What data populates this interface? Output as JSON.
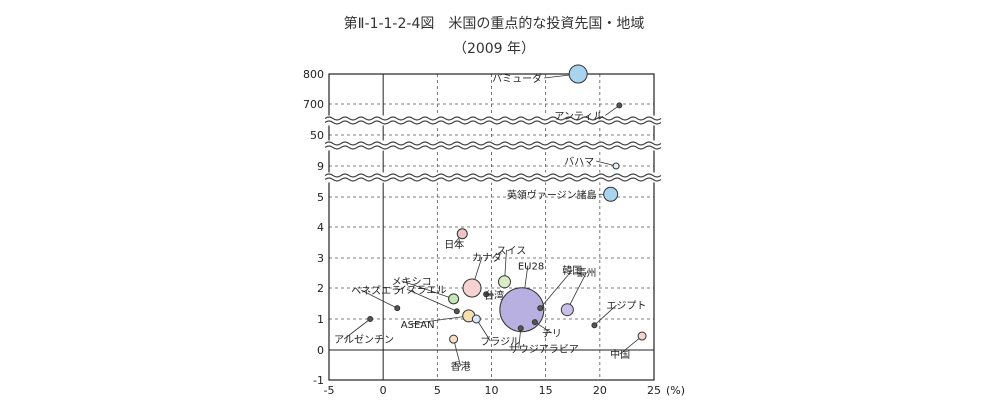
{
  "chart_data": {
    "type": "scatter",
    "title": "第Ⅱ-1-1-2-4図　米国の重点的な投資先国・地域",
    "subtitle": "（2009 年）",
    "x_unit": "(%)",
    "xlim": [
      -5,
      25
    ],
    "x_ticks": [
      "-5",
      "0",
      "5",
      "10",
      "15",
      "20",
      "25"
    ],
    "y_ticks": [
      "800",
      "700",
      "50",
      "9",
      "5",
      "4",
      "3",
      "2",
      "1",
      "0",
      "-1"
    ],
    "y_break_between": [
      [
        "5",
        "9"
      ],
      [
        "9",
        "50"
      ],
      [
        "50",
        "700"
      ]
    ],
    "points": [
      {
        "label": "バミューダ",
        "x": 18.0,
        "y": 800,
        "size": 9,
        "color": "#a8d4f0"
      },
      {
        "label": "アンティル",
        "x": 21.8,
        "y": 670,
        "size": 2.5,
        "color": "#555555"
      },
      {
        "label": "バハマ",
        "x": 21.5,
        "y": 9.0,
        "size": 3,
        "color": "#e6f2fa"
      },
      {
        "label": "英領ヴァージン諸島",
        "x": 21.0,
        "y": 5.35,
        "size": 7,
        "color": "#a8d4f0"
      },
      {
        "label": "日本",
        "x": 7.3,
        "y": 3.75,
        "size": 5,
        "color": "#f0c4c4"
      },
      {
        "label": "スイス",
        "x": 11.2,
        "y": 2.2,
        "size": 6,
        "color": "#d9ecc6"
      },
      {
        "label": "カナダ",
        "x": 8.2,
        "y": 2.0,
        "size": 9,
        "color": "#f6d3d0"
      },
      {
        "label": "メキシコ",
        "x": 6.5,
        "y": 1.65,
        "size": 5,
        "color": "#c6e6b6"
      },
      {
        "label": "台湾",
        "x": 9.5,
        "y": 1.8,
        "size": 2.5,
        "color": "#555555"
      },
      {
        "label": "ベネズエラ",
        "x": 1.3,
        "y": 1.35,
        "size": 2.5,
        "color": "#555555"
      },
      {
        "label": "イスラエル",
        "x": 6.8,
        "y": 1.25,
        "size": 2.5,
        "color": "#555555"
      },
      {
        "label": "EU28",
        "x": 12.8,
        "y": 1.3,
        "size": 22,
        "color": "#b8b0e0"
      },
      {
        "label": "韓国",
        "x": 14.5,
        "y": 1.35,
        "size": 2.5,
        "color": "#555555"
      },
      {
        "label": "豪州",
        "x": 17.0,
        "y": 1.3,
        "size": 6,
        "color": "#c8c0e8"
      },
      {
        "label": "アルゼンチン",
        "x": -1.2,
        "y": 1.0,
        "size": 2.5,
        "color": "#555555"
      },
      {
        "label": "ASEAN",
        "x": 7.9,
        "y": 1.1,
        "size": 6,
        "color": "#f6e0b0"
      },
      {
        "label": "ブラジル",
        "x": 8.6,
        "y": 1.0,
        "size": 4,
        "color": "#d8e8f8"
      },
      {
        "label": "チリ",
        "x": 14.0,
        "y": 0.9,
        "size": 2.5,
        "color": "#555555"
      },
      {
        "label": "サウジアラビア",
        "x": 12.7,
        "y": 0.7,
        "size": 2.5,
        "color": "#555555"
      },
      {
        "label": "エジプト",
        "x": 19.5,
        "y": 0.8,
        "size": 2.5,
        "color": "#555555"
      },
      {
        "label": "香港",
        "x": 6.5,
        "y": 0.35,
        "size": 4,
        "color": "#f6e0c8"
      },
      {
        "label": "中国",
        "x": 23.9,
        "y": 0.45,
        "size": 4,
        "color": "#f6d3d0"
      }
    ],
    "grid": true,
    "legend": "none"
  }
}
